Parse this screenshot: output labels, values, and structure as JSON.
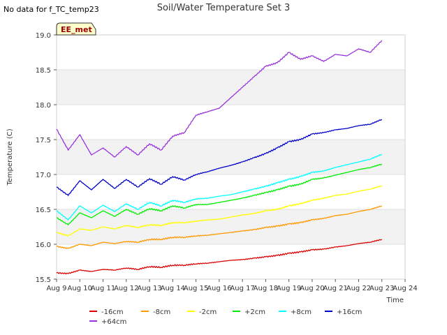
{
  "no_data_note": "No data for f_TC_temp23",
  "chart_data": {
    "type": "line",
    "title": "Soil/Water Temperature Set 3",
    "xlabel": "Time",
    "ylabel": "Temperature (C)",
    "site_badge": "EE_met",
    "xlim": [
      9,
      24
    ],
    "ylim": [
      15.5,
      19.0
    ],
    "x_ticks": [
      {
        "value": 9,
        "label": "Aug 9"
      },
      {
        "value": 10,
        "label": "Aug 10"
      },
      {
        "value": 11,
        "label": "Aug 11"
      },
      {
        "value": 12,
        "label": "Aug 12"
      },
      {
        "value": 13,
        "label": "Aug 13"
      },
      {
        "value": 14,
        "label": "Aug 14"
      },
      {
        "value": 15,
        "label": "Aug 15"
      },
      {
        "value": 16,
        "label": "Aug 16"
      },
      {
        "value": 17,
        "label": "Aug 17"
      },
      {
        "value": 18,
        "label": "Aug 18"
      },
      {
        "value": 19,
        "label": "Aug 19"
      },
      {
        "value": 20,
        "label": "Aug 20"
      },
      {
        "value": 21,
        "label": "Aug 21"
      },
      {
        "value": 22,
        "label": "Aug 22"
      },
      {
        "value": 23,
        "label": "Aug 23"
      },
      {
        "value": 24,
        "label": "Aug 24"
      }
    ],
    "y_ticks": [
      {
        "value": 15.5,
        "label": "15.5"
      },
      {
        "value": 16.0,
        "label": "16.0"
      },
      {
        "value": 16.5,
        "label": "16.5"
      },
      {
        "value": 17.0,
        "label": "17.0"
      },
      {
        "value": 17.5,
        "label": "17.5"
      },
      {
        "value": 18.0,
        "label": "18.0"
      },
      {
        "value": 18.5,
        "label": "18.5"
      },
      {
        "value": 19.0,
        "label": "19.0"
      }
    ],
    "grid": true,
    "legend_position": "bottom-center",
    "x": [
      9.0,
      9.5,
      10.0,
      10.5,
      11.0,
      11.5,
      12.0,
      12.5,
      13.0,
      13.5,
      14.0,
      14.5,
      15.0,
      15.5,
      16.0,
      16.5,
      17.0,
      17.5,
      18.0,
      18.5,
      19.0,
      19.5,
      20.0,
      20.5,
      21.0,
      21.5,
      22.0,
      22.5,
      23.0
    ],
    "series": [
      {
        "name": "-16cm",
        "color": "#dd0000",
        "values": [
          15.59,
          15.58,
          15.63,
          15.61,
          15.64,
          15.63,
          15.66,
          15.64,
          15.68,
          15.67,
          15.7,
          15.7,
          15.72,
          15.73,
          15.75,
          15.77,
          15.78,
          15.8,
          15.82,
          15.84,
          15.87,
          15.89,
          15.92,
          15.93,
          15.96,
          15.98,
          16.01,
          16.03,
          16.07
        ]
      },
      {
        "name": "-8cm",
        "color": "#ff9900",
        "values": [
          15.97,
          15.94,
          16.0,
          15.98,
          16.03,
          16.01,
          16.04,
          16.03,
          16.07,
          16.07,
          16.1,
          16.1,
          16.12,
          16.13,
          16.15,
          16.17,
          16.19,
          16.21,
          16.24,
          16.26,
          16.29,
          16.31,
          16.35,
          16.37,
          16.41,
          16.43,
          16.47,
          16.5,
          16.55
        ]
      },
      {
        "name": "-2cm",
        "color": "#ffff00",
        "values": [
          16.17,
          16.12,
          16.22,
          16.2,
          16.25,
          16.22,
          16.27,
          16.24,
          16.28,
          16.27,
          16.31,
          16.31,
          16.33,
          16.35,
          16.36,
          16.39,
          16.42,
          16.44,
          16.48,
          16.5,
          16.55,
          16.58,
          16.63,
          16.66,
          16.7,
          16.72,
          16.76,
          16.79,
          16.84
        ]
      },
      {
        "name": "+2cm",
        "color": "#00ee00",
        "values": [
          16.38,
          16.28,
          16.45,
          16.38,
          16.48,
          16.4,
          16.5,
          16.43,
          16.51,
          16.48,
          16.55,
          16.52,
          16.57,
          16.57,
          16.6,
          16.63,
          16.66,
          16.7,
          16.74,
          16.78,
          16.83,
          16.86,
          16.93,
          16.95,
          16.99,
          17.03,
          17.07,
          17.1,
          17.15
        ]
      },
      {
        "name": "+8cm",
        "color": "#00ffff",
        "values": [
          16.48,
          16.35,
          16.55,
          16.45,
          16.56,
          16.47,
          16.58,
          16.5,
          16.6,
          16.55,
          16.63,
          16.6,
          16.65,
          16.66,
          16.69,
          16.71,
          16.75,
          16.79,
          16.83,
          16.88,
          16.93,
          16.97,
          17.03,
          17.05,
          17.1,
          17.14,
          17.18,
          17.22,
          17.29
        ]
      },
      {
        "name": "+16cm",
        "color": "#0000cc",
        "values": [
          16.82,
          16.7,
          16.91,
          16.78,
          16.93,
          16.8,
          16.93,
          16.82,
          16.94,
          16.86,
          16.97,
          16.92,
          17.0,
          17.04,
          17.09,
          17.13,
          17.18,
          17.24,
          17.3,
          17.38,
          17.47,
          17.5,
          17.58,
          17.6,
          17.64,
          17.66,
          17.7,
          17.72,
          17.79
        ]
      },
      {
        "name": "+64cm",
        "color": "#9933dd",
        "values": [
          17.65,
          17.35,
          17.57,
          17.28,
          17.38,
          17.25,
          17.4,
          17.28,
          17.44,
          17.35,
          17.55,
          17.6,
          17.85,
          17.9,
          17.95,
          18.1,
          18.25,
          18.4,
          18.55,
          18.6,
          18.75,
          18.65,
          18.7,
          18.62,
          18.72,
          18.7,
          18.8,
          18.75,
          18.92
        ]
      }
    ]
  }
}
